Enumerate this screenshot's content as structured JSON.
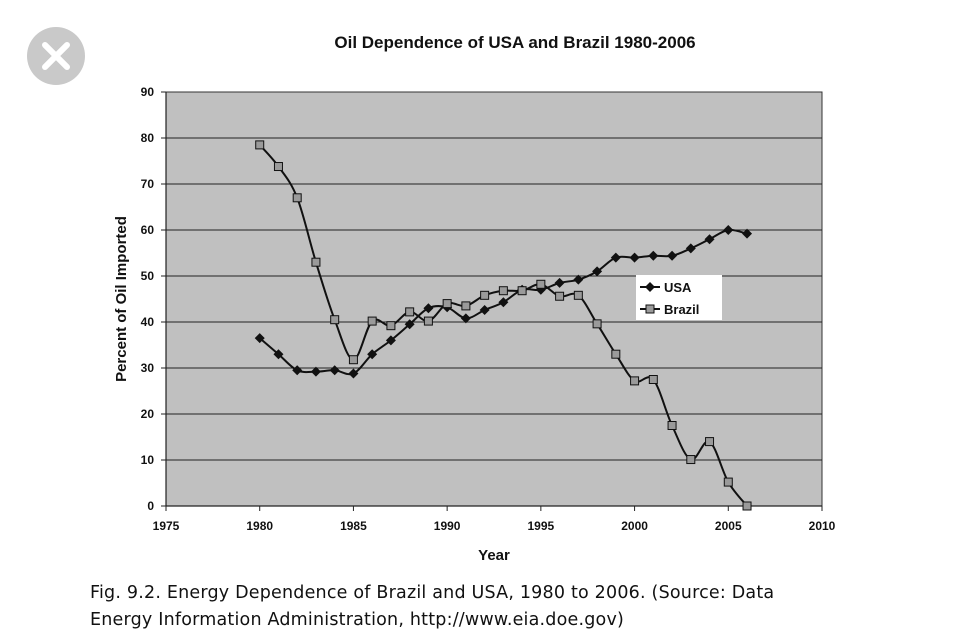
{
  "close_button": {
    "icon": "close-icon",
    "color": "#c9c9c9"
  },
  "chart_data": {
    "type": "line",
    "title": "Oil Dependence of USA and Brazil 1980-2006",
    "xlabel": "Year",
    "ylabel": "Percent of Oil Imported",
    "xlim": [
      1975,
      2010
    ],
    "ylim": [
      0,
      90
    ],
    "xticks": [
      1975,
      1980,
      1985,
      1990,
      1995,
      2000,
      2005,
      2010
    ],
    "yticks": [
      0,
      10,
      20,
      30,
      40,
      50,
      60,
      70,
      80,
      90
    ],
    "grid": "horizontal",
    "plot_background": "#c0c0c0",
    "legend_position": "center-right",
    "series": [
      {
        "name": "USA",
        "marker": "diamond",
        "color": "#111111",
        "x": [
          1980,
          1981,
          1982,
          1983,
          1984,
          1985,
          1986,
          1987,
          1988,
          1989,
          1990,
          1991,
          1992,
          1993,
          1994,
          1995,
          1996,
          1997,
          1998,
          1999,
          2000,
          2001,
          2002,
          2003,
          2004,
          2005,
          2006
        ],
        "values": [
          36.5,
          33,
          29.5,
          29.2,
          29.5,
          28.8,
          33,
          36,
          39.5,
          43,
          43.2,
          40.8,
          42.6,
          44.3,
          47,
          47,
          48.5,
          49.2,
          51,
          54,
          54,
          54.4,
          54.4,
          56,
          58,
          60,
          59.2
        ]
      },
      {
        "name": "Brazil",
        "marker": "square",
        "color": "#111111",
        "x": [
          1980,
          1981,
          1982,
          1983,
          1984,
          1985,
          1986,
          1987,
          1988,
          1989,
          1990,
          1991,
          1992,
          1993,
          1994,
          1995,
          1996,
          1997,
          1998,
          1999,
          2000,
          2001,
          2002,
          2003,
          2004,
          2005,
          2006
        ],
        "values": [
          78.5,
          73.8,
          67,
          53,
          40.5,
          31.8,
          40.2,
          39.2,
          42.2,
          40.2,
          44,
          43.5,
          45.8,
          46.8,
          46.8,
          48.2,
          45.6,
          45.8,
          39.6,
          33,
          27.2,
          27.5,
          17.5,
          10.1,
          14,
          5.2,
          0
        ]
      }
    ]
  },
  "caption": {
    "line1": "Fig. 9.2. Energy Dependence of Brazil and USA, 1980 to 2006. (Source: Data",
    "line2": "Energy Information Administration, http://www.eia.doe.gov)"
  }
}
